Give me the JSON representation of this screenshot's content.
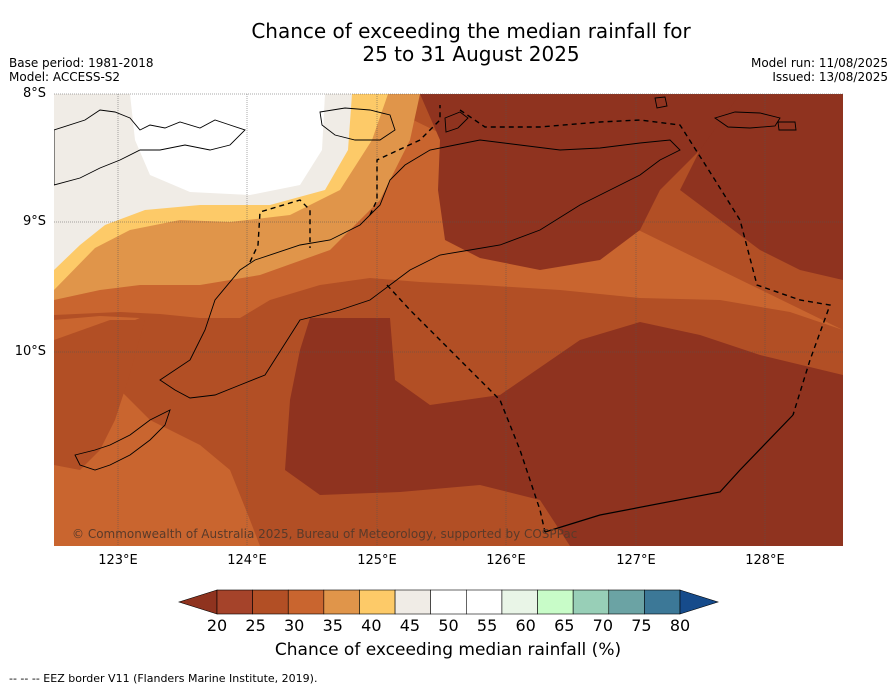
{
  "title": {
    "line1": "Chance of exceeding the median rainfall for",
    "line2": "25 to 31 August 2025"
  },
  "meta_left": {
    "base_period": "Base period: 1981-2018",
    "model": "Model: ACCESS-S2"
  },
  "meta_right": {
    "model_run": "Model run: 11/08/2025",
    "issued": "Issued: 13/08/2025"
  },
  "axes": {
    "lat_labels": [
      "8°S",
      "9°S",
      "10°S"
    ],
    "lon_labels": [
      "123°E",
      "124°E",
      "125°E",
      "126°E",
      "127°E",
      "128°E"
    ]
  },
  "copyright": "© Commonwealth of Australia 2025, Bureau of Meteorology, supported by COSPPac",
  "colorbar": {
    "ticks": [
      "20",
      "25",
      "30",
      "35",
      "40",
      "45",
      "50",
      "55",
      "60",
      "65",
      "70",
      "75",
      "80"
    ],
    "colors": [
      "#a5432a",
      "#b24f25",
      "#c9652f",
      "#e0954a",
      "#fdca68",
      "#f0ece6",
      "#ffffff",
      "#ffffff",
      "#e9f5e7",
      "#c8fcc8",
      "#98cfb7",
      "#6ba3a4",
      "#3c7897"
    ],
    "under_color": "#8f331f",
    "over_color": "#164b8b",
    "title": "Chance of exceeding median rainfall (%)"
  },
  "map_colors": {
    "lt20": "#8f331f",
    "c20_25": "#a5432a",
    "c25_30": "#b24f25",
    "c30_35": "#c9652f",
    "c35_40": "#e0954a",
    "c40_45": "#fdca68",
    "c45_50": "#f0ece6",
    "c50_55": "#ffffff"
  },
  "footer": "--  --  -- EEZ border V11 (Flanders Marine Institute, 2019)."
}
